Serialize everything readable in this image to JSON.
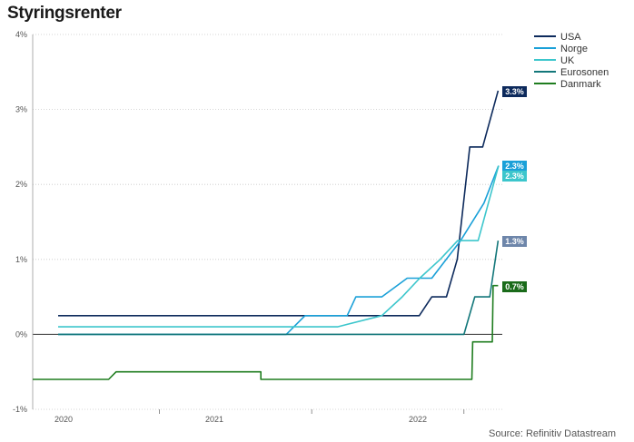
{
  "title": "Styringsrenter",
  "source": "Source: Refinitiv Datastream",
  "chart_data": {
    "type": "line",
    "title": "Styringsrenter",
    "xlabel": "",
    "ylabel": "",
    "ylim": [
      -1,
      4
    ],
    "xlim": [
      "2019-09-01",
      "2022-10-01"
    ],
    "yticks": [
      -1,
      0,
      1,
      2,
      3,
      4
    ],
    "ytick_labels": [
      "-1%",
      "0%",
      "1%",
      "2%",
      "3%",
      "4%"
    ],
    "xtick_labels": [
      {
        "label": "2020",
        "date": "2020-01-01"
      },
      {
        "label": "2021",
        "date": "2021-01-01"
      },
      {
        "label": "2022",
        "date": "2022-01-01"
      }
    ],
    "grid": "horizontal dotted",
    "legend": "top-right",
    "series": [
      {
        "name": "USA",
        "color": "#0d2a5c",
        "end_label": "3.3%",
        "label_color": "#0d2a5c",
        "points": [
          [
            "2019-11-01",
            0.25
          ],
          [
            "2021-09-15",
            0.25
          ],
          [
            "2022-03-16",
            0.25
          ],
          [
            "2022-04-15",
            0.5
          ],
          [
            "2022-05-20",
            0.5
          ],
          [
            "2022-06-15",
            1.0
          ],
          [
            "2022-07-15",
            2.5
          ],
          [
            "2022-08-15",
            2.5
          ],
          [
            "2022-09-21",
            3.25
          ]
        ]
      },
      {
        "name": "Norge",
        "color": "#1aa0d8",
        "end_label": "2.3%",
        "label_color": "#1aa0d8",
        "points": [
          [
            "2019-11-01",
            0.0
          ],
          [
            "2021-05-01",
            0.0
          ],
          [
            "2021-06-15",
            0.25
          ],
          [
            "2021-09-24",
            0.25
          ],
          [
            "2021-10-15",
            0.5
          ],
          [
            "2021-12-16",
            0.5
          ],
          [
            "2022-02-15",
            0.75
          ],
          [
            "2022-04-15",
            0.75
          ],
          [
            "2022-06-23",
            1.25
          ],
          [
            "2022-08-18",
            1.75
          ],
          [
            "2022-09-22",
            2.25
          ]
        ]
      },
      {
        "name": "UK",
        "color": "#3cc6cc",
        "end_label": "2.3%",
        "label_color": "#3cc6cc",
        "points": [
          [
            "2019-11-01",
            0.1
          ],
          [
            "2021-09-01",
            0.1
          ],
          [
            "2021-12-16",
            0.25
          ],
          [
            "2022-02-03",
            0.5
          ],
          [
            "2022-03-17",
            0.75
          ],
          [
            "2022-05-05",
            1.0
          ],
          [
            "2022-06-16",
            1.25
          ],
          [
            "2022-08-04",
            1.25
          ],
          [
            "2022-09-22",
            2.25
          ]
        ]
      },
      {
        "name": "Eurosonen",
        "color": "#13777a",
        "end_label": "1.3%",
        "label_color": "#6e86aa",
        "points": [
          [
            "2019-11-01",
            0.0
          ],
          [
            "2022-07-01",
            0.0
          ],
          [
            "2022-07-27",
            0.5
          ],
          [
            "2022-09-01",
            0.5
          ],
          [
            "2022-09-21",
            1.25
          ]
        ]
      },
      {
        "name": "Danmark",
        "color": "#1f7d1f",
        "end_label": "0.7%",
        "label_color": "#1a6b1a",
        "points": [
          [
            "2019-09-01",
            -0.6
          ],
          [
            "2020-03-01",
            -0.6
          ],
          [
            "2020-03-19",
            -0.5
          ],
          [
            "2021-03-01",
            -0.5
          ],
          [
            "2021-03-01",
            -0.6
          ],
          [
            "2022-07-20",
            -0.6
          ],
          [
            "2022-07-22",
            -0.1
          ],
          [
            "2022-09-07",
            -0.1
          ],
          [
            "2022-09-09",
            0.65
          ],
          [
            "2022-09-21",
            0.65
          ]
        ]
      }
    ]
  }
}
